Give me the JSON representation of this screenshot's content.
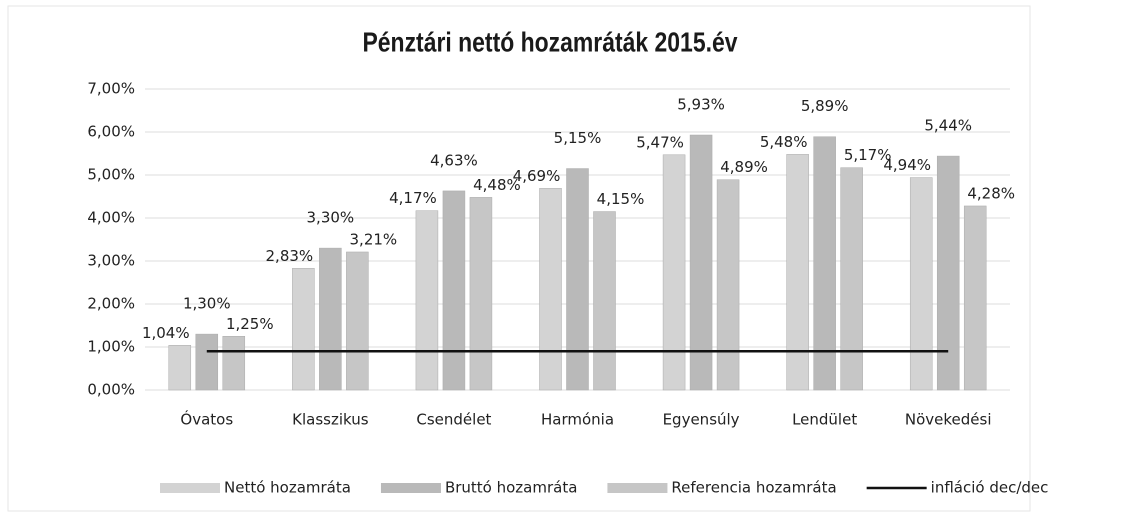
{
  "chart_data": {
    "type": "bar",
    "title": "Pénztári nettó hozamráták 2015.év",
    "categories": [
      "Óvatos",
      "Klasszikus",
      "Csendélet",
      "Harmónia",
      "Egyensúly",
      "Lendület",
      "Növekedési"
    ],
    "series": [
      {
        "name": "Nettó hozamráta",
        "color": "#d3d3d3",
        "values": [
          1.04,
          2.83,
          4.17,
          4.69,
          5.47,
          5.48,
          4.94
        ],
        "value_labels": [
          "1,04%",
          "2,83%",
          "4,17%",
          "4,69%",
          "5,47%",
          "5,48%",
          "4,94%"
        ]
      },
      {
        "name": "Bruttó hozamráta",
        "color": "#b9b9b9",
        "values": [
          1.3,
          3.3,
          4.63,
          5.15,
          5.93,
          5.89,
          5.44
        ],
        "value_labels": [
          "1,30%",
          "3,30%",
          "4,63%",
          "5,15%",
          "5,93%",
          "5,89%",
          "5,44%"
        ]
      },
      {
        "name": "Referencia hozamráta",
        "color": "#c6c6c6",
        "values": [
          1.25,
          3.21,
          4.48,
          4.15,
          4.89,
          5.17,
          4.28
        ],
        "value_labels": [
          "1,25%",
          "3,21%",
          "4,48%",
          "4,15%",
          "4,89%",
          "5,17%",
          "4,28%"
        ]
      },
      {
        "name": "infláció dec/dec",
        "type": "line",
        "color": "#111111",
        "values": [
          0.9,
          0.9,
          0.9,
          0.9,
          0.9,
          0.9,
          0.9
        ]
      }
    ],
    "ylim": [
      0,
      7
    ],
    "yticks": [
      {
        "value": 0,
        "label": "0,00%"
      },
      {
        "value": 1,
        "label": "1,00%"
      },
      {
        "value": 2,
        "label": "2,00%"
      },
      {
        "value": 3,
        "label": "3,00%"
      },
      {
        "value": 4,
        "label": "4,00%"
      },
      {
        "value": 5,
        "label": "5,00%"
      },
      {
        "value": 6,
        "label": "6,00%"
      },
      {
        "value": 7,
        "label": "7,00%"
      }
    ],
    "grid": true,
    "legend": "bottom"
  }
}
